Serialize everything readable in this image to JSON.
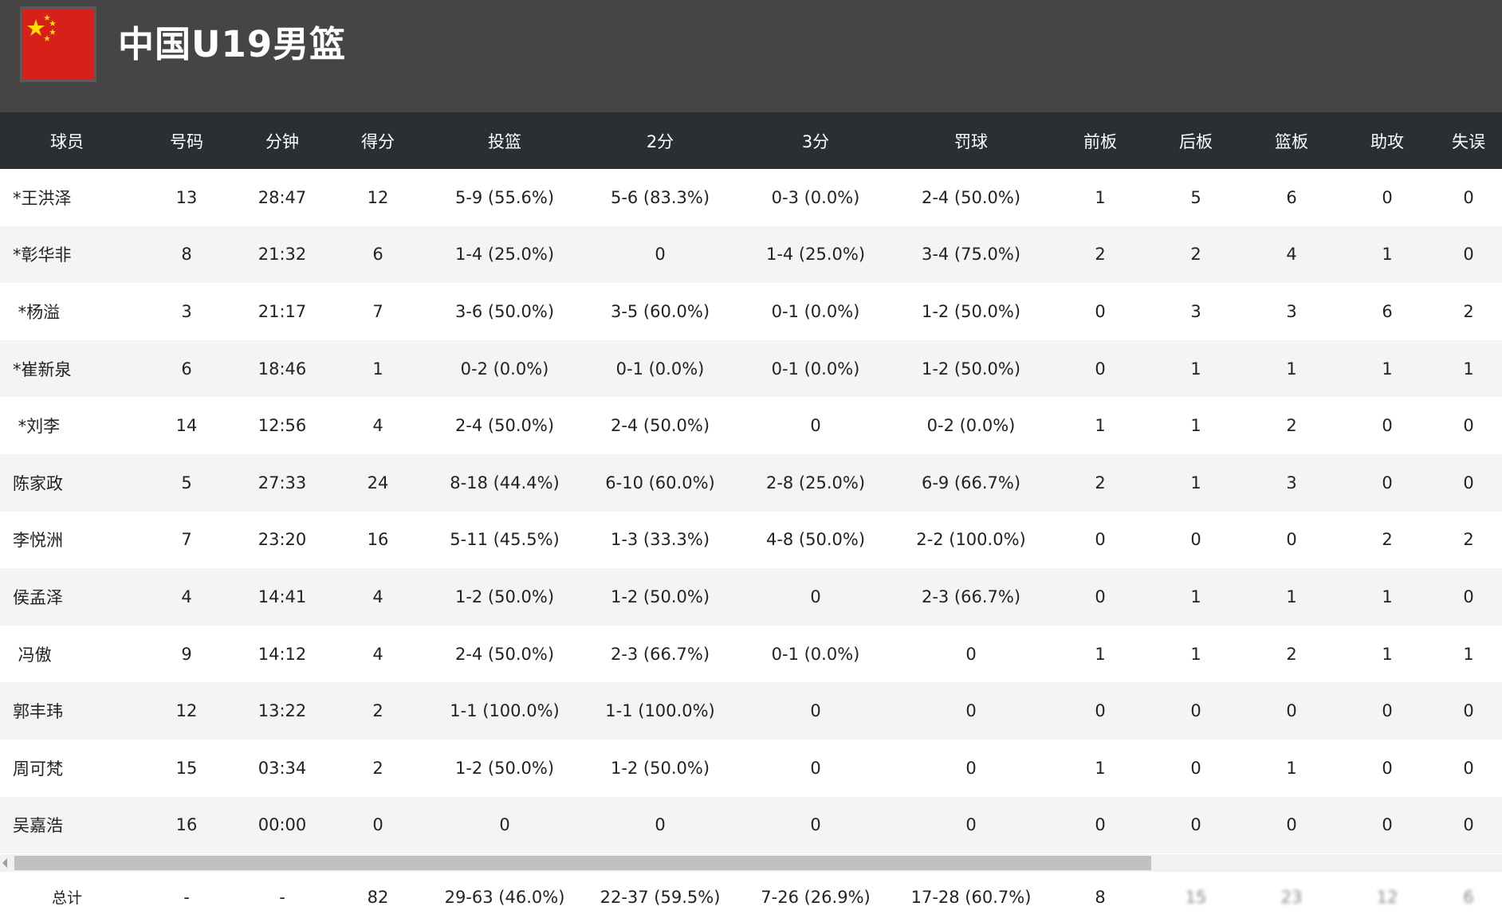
{
  "team": {
    "name": "中国U19男篮",
    "flag_color": "#d8201a",
    "flag_star_color": "#ffde00"
  },
  "columns": [
    "球员",
    "号码",
    "分钟",
    "得分",
    "投篮",
    "2分",
    "3分",
    "罚球",
    "前板",
    "后板",
    "篮板",
    "助攻",
    "失误"
  ],
  "players": [
    {
      "name": "*王洪泽",
      "number": "13",
      "minutes": "28:47",
      "points": "12",
      "fg": "5-9 (55.6%)",
      "two": "5-6 (83.3%)",
      "three": "0-3 (0.0%)",
      "ft": "2-4 (50.0%)",
      "oreb": "1",
      "dreb": "5",
      "reb": "6",
      "ast": "0",
      "to": "0"
    },
    {
      "name": "*彰华非",
      "number": "8",
      "minutes": "21:32",
      "points": "6",
      "fg": "1-4 (25.0%)",
      "two": "0",
      "three": "1-4 (25.0%)",
      "ft": "3-4 (75.0%)",
      "oreb": "2",
      "dreb": "2",
      "reb": "4",
      "ast": "1",
      "to": "0"
    },
    {
      "name": " *杨溢",
      "number": "3",
      "minutes": "21:17",
      "points": "7",
      "fg": "3-6 (50.0%)",
      "two": "3-5 (60.0%)",
      "three": "0-1 (0.0%)",
      "ft": "1-2 (50.0%)",
      "oreb": "0",
      "dreb": "3",
      "reb": "3",
      "ast": "6",
      "to": "2"
    },
    {
      "name": "*崔新泉",
      "number": "6",
      "minutes": "18:46",
      "points": "1",
      "fg": "0-2 (0.0%)",
      "two": "0-1 (0.0%)",
      "three": "0-1 (0.0%)",
      "ft": "1-2 (50.0%)",
      "oreb": "0",
      "dreb": "1",
      "reb": "1",
      "ast": "1",
      "to": "1"
    },
    {
      "name": " *刘李",
      "number": "14",
      "minutes": "12:56",
      "points": "4",
      "fg": "2-4 (50.0%)",
      "two": "2-4 (50.0%)",
      "three": "0",
      "ft": "0-2 (0.0%)",
      "oreb": "1",
      "dreb": "1",
      "reb": "2",
      "ast": "0",
      "to": "0"
    },
    {
      "name": "陈家政",
      "number": "5",
      "minutes": "27:33",
      "points": "24",
      "fg": "8-18 (44.4%)",
      "two": "6-10 (60.0%)",
      "three": "2-8 (25.0%)",
      "ft": "6-9 (66.7%)",
      "oreb": "2",
      "dreb": "1",
      "reb": "3",
      "ast": "0",
      "to": "0"
    },
    {
      "name": "李悦洲",
      "number": "7",
      "minutes": "23:20",
      "points": "16",
      "fg": "5-11 (45.5%)",
      "two": "1-3 (33.3%)",
      "three": "4-8 (50.0%)",
      "ft": "2-2 (100.0%)",
      "oreb": "0",
      "dreb": "0",
      "reb": "0",
      "ast": "2",
      "to": "2"
    },
    {
      "name": "侯孟泽",
      "number": "4",
      "minutes": "14:41",
      "points": "4",
      "fg": "1-2 (50.0%)",
      "two": "1-2 (50.0%)",
      "three": "0",
      "ft": "2-3 (66.7%)",
      "oreb": "0",
      "dreb": "1",
      "reb": "1",
      "ast": "1",
      "to": "0"
    },
    {
      "name": " 冯傲",
      "number": "9",
      "minutes": "14:12",
      "points": "4",
      "fg": "2-4 (50.0%)",
      "two": "2-3 (66.7%)",
      "three": "0-1 (0.0%)",
      "ft": "0",
      "oreb": "1",
      "dreb": "1",
      "reb": "2",
      "ast": "1",
      "to": "1"
    },
    {
      "name": "郭丰玮",
      "number": "12",
      "minutes": "13:22",
      "points": "2",
      "fg": "1-1 (100.0%)",
      "two": "1-1 (100.0%)",
      "three": "0",
      "ft": "0",
      "oreb": "0",
      "dreb": "0",
      "reb": "0",
      "ast": "0",
      "to": "0"
    },
    {
      "name": "周可梵",
      "number": "15",
      "minutes": "03:34",
      "points": "2",
      "fg": "1-2 (50.0%)",
      "two": "1-2 (50.0%)",
      "three": "0",
      "ft": "0",
      "oreb": "1",
      "dreb": "0",
      "reb": "1",
      "ast": "0",
      "to": "0"
    },
    {
      "name": "吴嘉浩",
      "number": "16",
      "minutes": "00:00",
      "points": "0",
      "fg": "0",
      "two": "0",
      "three": "0",
      "ft": "0",
      "oreb": "0",
      "dreb": "0",
      "reb": "0",
      "ast": "0",
      "to": "0"
    }
  ],
  "totals": {
    "label": "总计",
    "number": "-",
    "minutes": "-",
    "points": "82",
    "fg": "29-63 (46.0%)",
    "two": "22-37 (59.5%)",
    "three": "7-26 (26.9%)",
    "ft": "17-28 (60.7%)",
    "oreb": "8",
    "dreb": "15",
    "reb": "23",
    "ast": "12",
    "to": "6"
  }
}
